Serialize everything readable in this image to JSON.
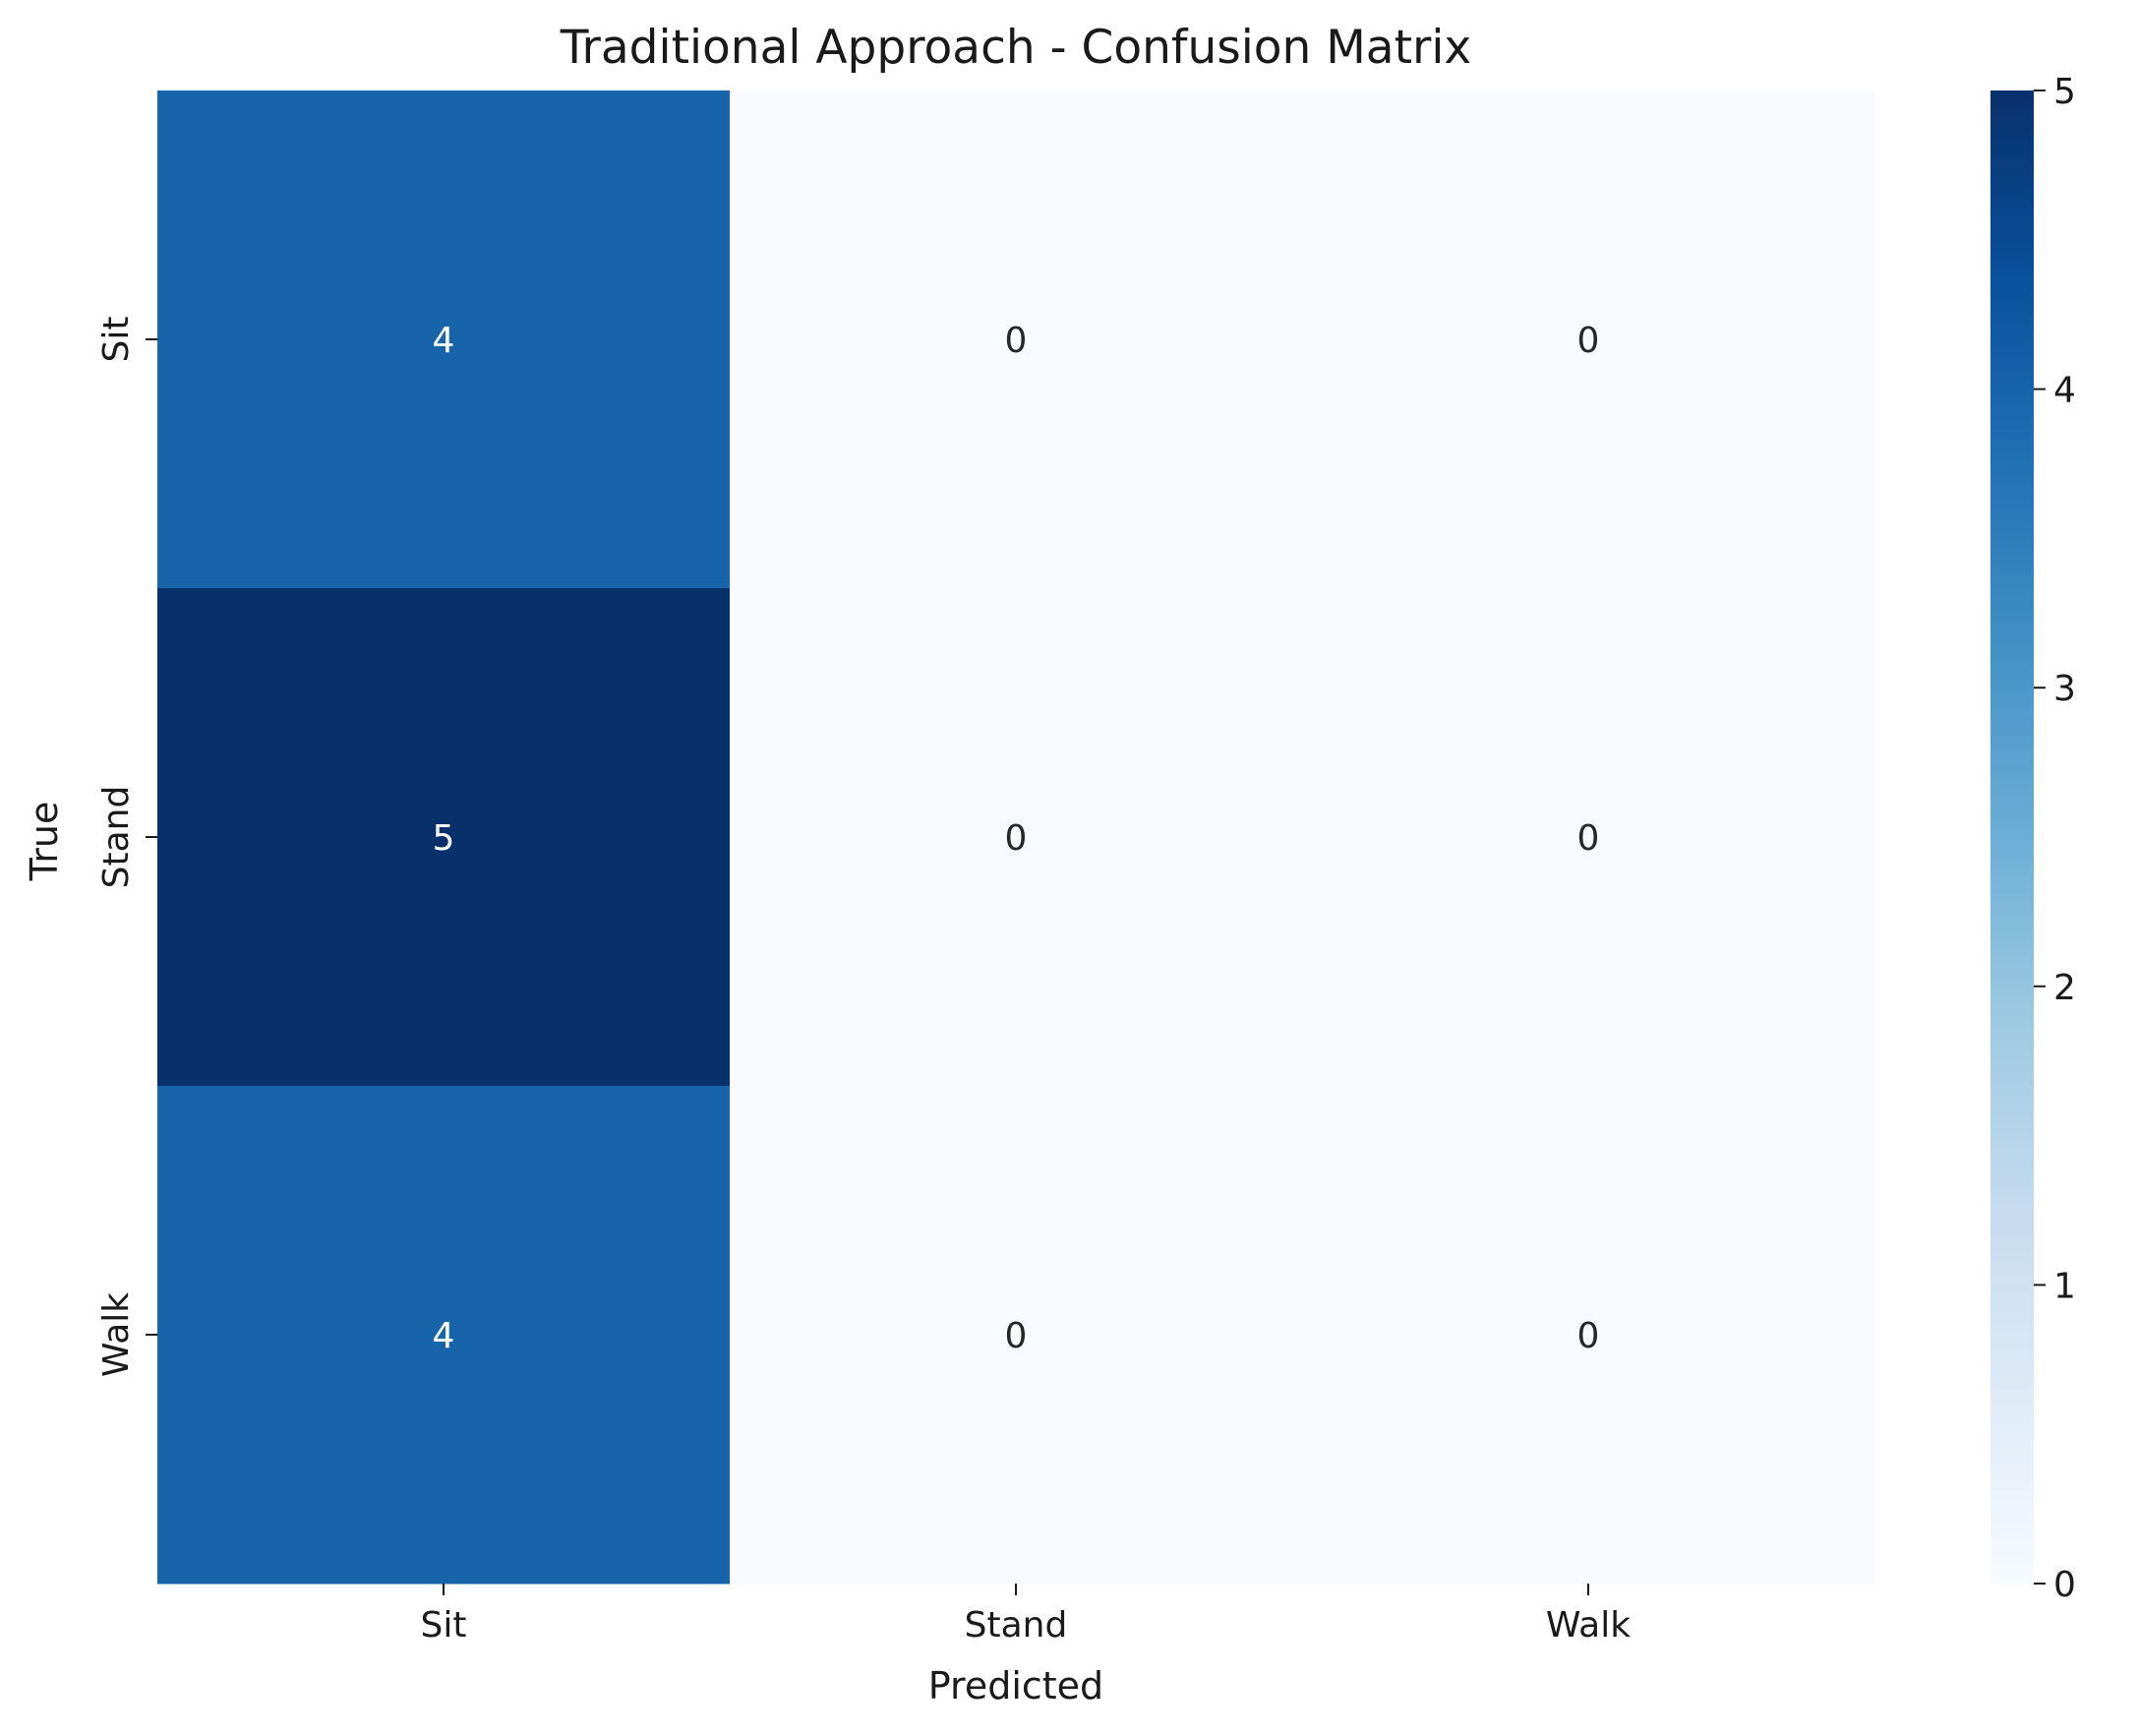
{
  "chart_data": {
    "type": "heatmap",
    "title": "Traditional Approach - Confusion Matrix",
    "xlabel": "Predicted",
    "ylabel": "True",
    "x_categories": [
      "Sit",
      "Stand",
      "Walk"
    ],
    "y_categories": [
      "Sit",
      "Stand",
      "Walk"
    ],
    "values": [
      [
        4,
        0,
        0
      ],
      [
        5,
        0,
        0
      ],
      [
        4,
        0,
        0
      ]
    ],
    "annotations": true,
    "colormap": "Blues",
    "colorbar": {
      "range": [
        0,
        5
      ],
      "ticks": [
        0,
        1,
        2,
        3,
        4,
        5
      ]
    },
    "colors": {
      "scale": [
        "#f7fbff",
        "#deebf7",
        "#c6dbef",
        "#9ecae1",
        "#6baed6",
        "#4292c6",
        "#2171b5",
        "#08519c",
        "#08306b"
      ],
      "annotation_dark": "#262626",
      "annotation_light": "#ffffff"
    }
  }
}
